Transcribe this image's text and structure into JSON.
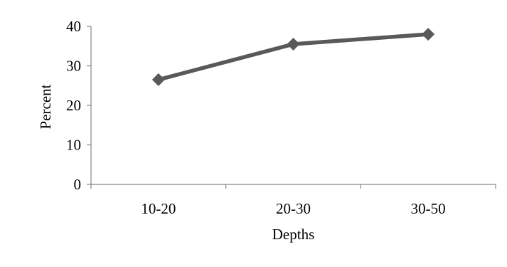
{
  "chart_data": {
    "type": "line",
    "title": "",
    "xlabel": "Depths",
    "ylabel": "Percent",
    "categories": [
      "10-20",
      "20-30",
      "30-50"
    ],
    "series": [
      {
        "values": [
          26.5,
          35.5,
          38
        ],
        "color": "#595959",
        "marker": "diamond"
      }
    ],
    "ylim": [
      0,
      40
    ],
    "yticks": [
      "0",
      "10",
      "20",
      "30",
      "40"
    ],
    "grid": false,
    "legend": "none"
  }
}
